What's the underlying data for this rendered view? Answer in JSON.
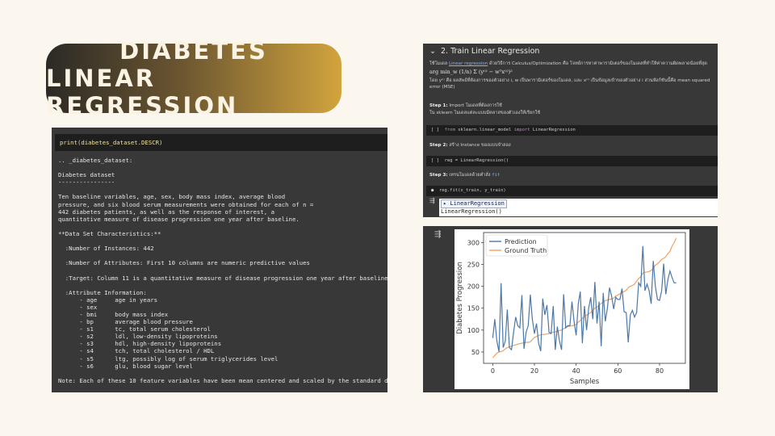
{
  "title": {
    "line1": "DIABETES",
    "line2": "LINEAR REGRESSION"
  },
  "left_panel": {
    "code": "print(diabetes_dataset.DESCR)",
    "output": ".. _diabetes_dataset:\n\nDiabetes dataset\n----------------\n\nTen baseline variables, age, sex, body mass index, average blood\npressure, and six blood serum measurements were obtained for each of n =\n442 diabetes patients, as well as the response of interest, a\nquantitative measure of disease progression one year after baseline.\n\n**Data Set Characteristics:**\n\n  :Number of Instances: 442\n\n  :Number of Attributes: First 10 columns are numeric predictive values\n\n  :Target: Column 11 is a quantitative measure of disease progression one year after baseline\n\n  :Attribute Information:\n      - age     age in years\n      - sex\n      - bmi     body mass index\n      - bp      average blood pressure\n      - s1      tc, total serum cholesterol\n      - s2      ldl, low-density lipoproteins\n      - s3      hdl, high-density lipoproteins\n      - s4      tch, total cholesterol / HDL\n      - s5      ltg, possibly log of serum triglycerides level\n      - s6      glu, blood sugar level\n\nNote: Each of these 10 feature variables have been mean centered and scaled by the standard deviation"
  },
  "right_top": {
    "header": "2. Train Linear Regression",
    "intro_prefix": "ใช้โมเดล ",
    "intro_link": "Linear regression",
    "intro_suffix": " ด้วยวิธีการ Calculus/Optimization คือ โจทย์การหาค่าพารามิเตอร์ของโมเดลที่ทำให้ค่าความผิดพลาดน้อยที่สุด",
    "formula": "arg min_w (1/n) Σ (y⁽ⁱ⁾ − wᵀx⁽ⁱ⁾)²",
    "explain": "โดย y⁽ⁱ⁾ คือ ผลลัพธ์ที่ต้องการของตัวอย่าง i, w เป็นพารามิเตอร์ของโมเดล, และ x⁽ⁱ⁾ เป็นข้อมูลเข้าของตัวอย่าง i ส่วนฟังก์ชันนี้คือ mean squared error (MSE)",
    "step1_label": "Step 1:",
    "step1_text": " Import โมเดลที่ต้องการใช้",
    "step1_note": "ใน sklearn โมเดลแต่ละแบบมีคลาสของตัวเองให้เรียกใช้",
    "code1_bracket": "[ ]",
    "code1_kw1": "from",
    "code1_mod": " sklearn.linear_model ",
    "code1_kw2": "import",
    "code1_cls": " LinearRegression",
    "step2_label": "Step 2:",
    "step2_text": " สร้าง Instance ของแบบจำลอง",
    "code2_bracket": "[ ]",
    "code2": "reg = LinearRegression()",
    "step3_label": "Step 3:",
    "step3_text": " เทรนโมเดลด้วยคำสั่ง ",
    "step3_code": "fit",
    "code3": "reg.fit(x_train, y_train)",
    "output_title": "▸ LinearRegression",
    "output_value": "LinearRegression()"
  },
  "chart_data": {
    "type": "line",
    "xlabel": "Samples",
    "ylabel": "Diabetes Progression",
    "xlim": [
      -4.4,
      92.4
    ],
    "ylim": [
      24,
      323
    ],
    "xticks": [
      0,
      20,
      40,
      60,
      80
    ],
    "yticks": [
      50,
      100,
      150,
      200,
      250,
      300
    ],
    "legend_position": "top-left",
    "grid": false,
    "series": [
      {
        "name": "Prediction",
        "color": "#4c78a8",
        "values": [
          82,
          125,
          75,
          50,
          207,
          60,
          75,
          147,
          60,
          55,
          95,
          130,
          110,
          105,
          180,
          57,
          95,
          110,
          181,
          125,
          92,
          115,
          70,
          52,
          172,
          135,
          157,
          95,
          92,
          155,
          55,
          108,
          75,
          55,
          182,
          105,
          110,
          110,
          165,
          120,
          88,
          160,
          188,
          70,
          155,
          100,
          150,
          175,
          125,
          210,
          115,
          165,
          63,
          185,
          120,
          150,
          197,
          178,
          148,
          175,
          170,
          170,
          195,
          142,
          140,
          72,
          135,
          145,
          130,
          140,
          208,
          200,
          292,
          190,
          205,
          190,
          160,
          258,
          200,
          170,
          168,
          190,
          252,
          182,
          215,
          235,
          220,
          208,
          208
        ]
      },
      {
        "name": "Ground Truth",
        "color": "#f0a060",
        "values": [
          37,
          42,
          47,
          50,
          51,
          53,
          57,
          60,
          62,
          63,
          65,
          66,
          68,
          69,
          70,
          71,
          72,
          72,
          73,
          78,
          83,
          85,
          88,
          89,
          90,
          90,
          91,
          92,
          94,
          95,
          96,
          97,
          99,
          100,
          103,
          106,
          108,
          109,
          110,
          111,
          113,
          118,
          122,
          127,
          131,
          134,
          137,
          140,
          145,
          150,
          153,
          157,
          161,
          165,
          167,
          169,
          170,
          171,
          173,
          178,
          180,
          183,
          186,
          188,
          191,
          197,
          200,
          202,
          205,
          212,
          218,
          222,
          230,
          232,
          233,
          234,
          236,
          242,
          248,
          252,
          256,
          262,
          264,
          268,
          275,
          280,
          292,
          300,
          310
        ]
      }
    ]
  }
}
